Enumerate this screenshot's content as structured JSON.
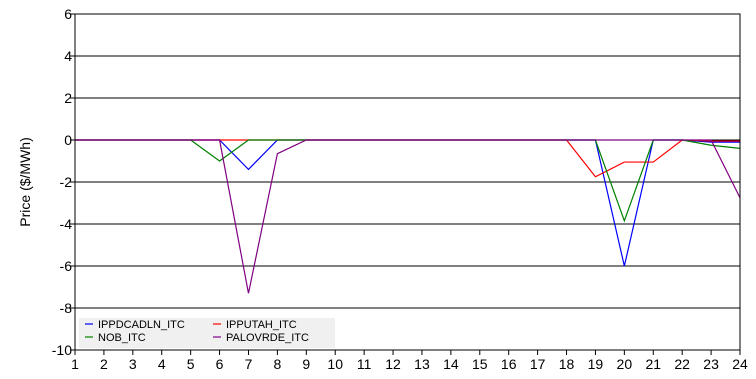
{
  "chart_data": {
    "type": "line",
    "ylabel": "Price ($/MWh)",
    "xlabel": "",
    "ylim": [
      -10,
      6
    ],
    "yticks": [
      6,
      4,
      2,
      0,
      -2,
      -4,
      -6,
      -8,
      -10
    ],
    "x": [
      1,
      2,
      3,
      4,
      5,
      6,
      7,
      8,
      9,
      10,
      11,
      12,
      13,
      14,
      15,
      16,
      17,
      18,
      19,
      20,
      21,
      22,
      23,
      24
    ],
    "grid": "horizontal",
    "legend_position": "bottom-left",
    "series": [
      {
        "name": "IPPDCADLN_ITC",
        "color": "#0000ff",
        "values": [
          0,
          0,
          0,
          0,
          0,
          0,
          -1.4,
          0,
          0,
          0,
          0,
          0,
          0,
          0,
          0,
          0,
          0,
          0,
          0,
          -6.0,
          0,
          0,
          -0.1,
          -0.1
        ]
      },
      {
        "name": "IPPUTAH_ITC",
        "color": "#ff0000",
        "values": [
          0,
          0,
          0,
          0,
          0,
          0,
          0,
          0,
          0,
          0,
          0,
          0,
          0,
          0,
          0,
          0,
          0,
          0,
          -1.75,
          -1.05,
          -1.05,
          0,
          -0.05,
          -0.05
        ]
      },
      {
        "name": "NOB_ITC",
        "color": "#008000",
        "values": [
          0,
          0,
          0,
          0,
          0,
          -1.0,
          0,
          0,
          0,
          0,
          0,
          0,
          0,
          0,
          0,
          0,
          0,
          0,
          0,
          -3.85,
          0,
          0,
          -0.25,
          -0.4
        ]
      },
      {
        "name": "PALOVRDE_ITC",
        "color": "#800080",
        "values": [
          0,
          0,
          0,
          0,
          0,
          0,
          -7.3,
          -0.65,
          0,
          0,
          0,
          0,
          0,
          0,
          0,
          0,
          0,
          0,
          0,
          0,
          0,
          0,
          0,
          -2.75
        ]
      }
    ]
  }
}
